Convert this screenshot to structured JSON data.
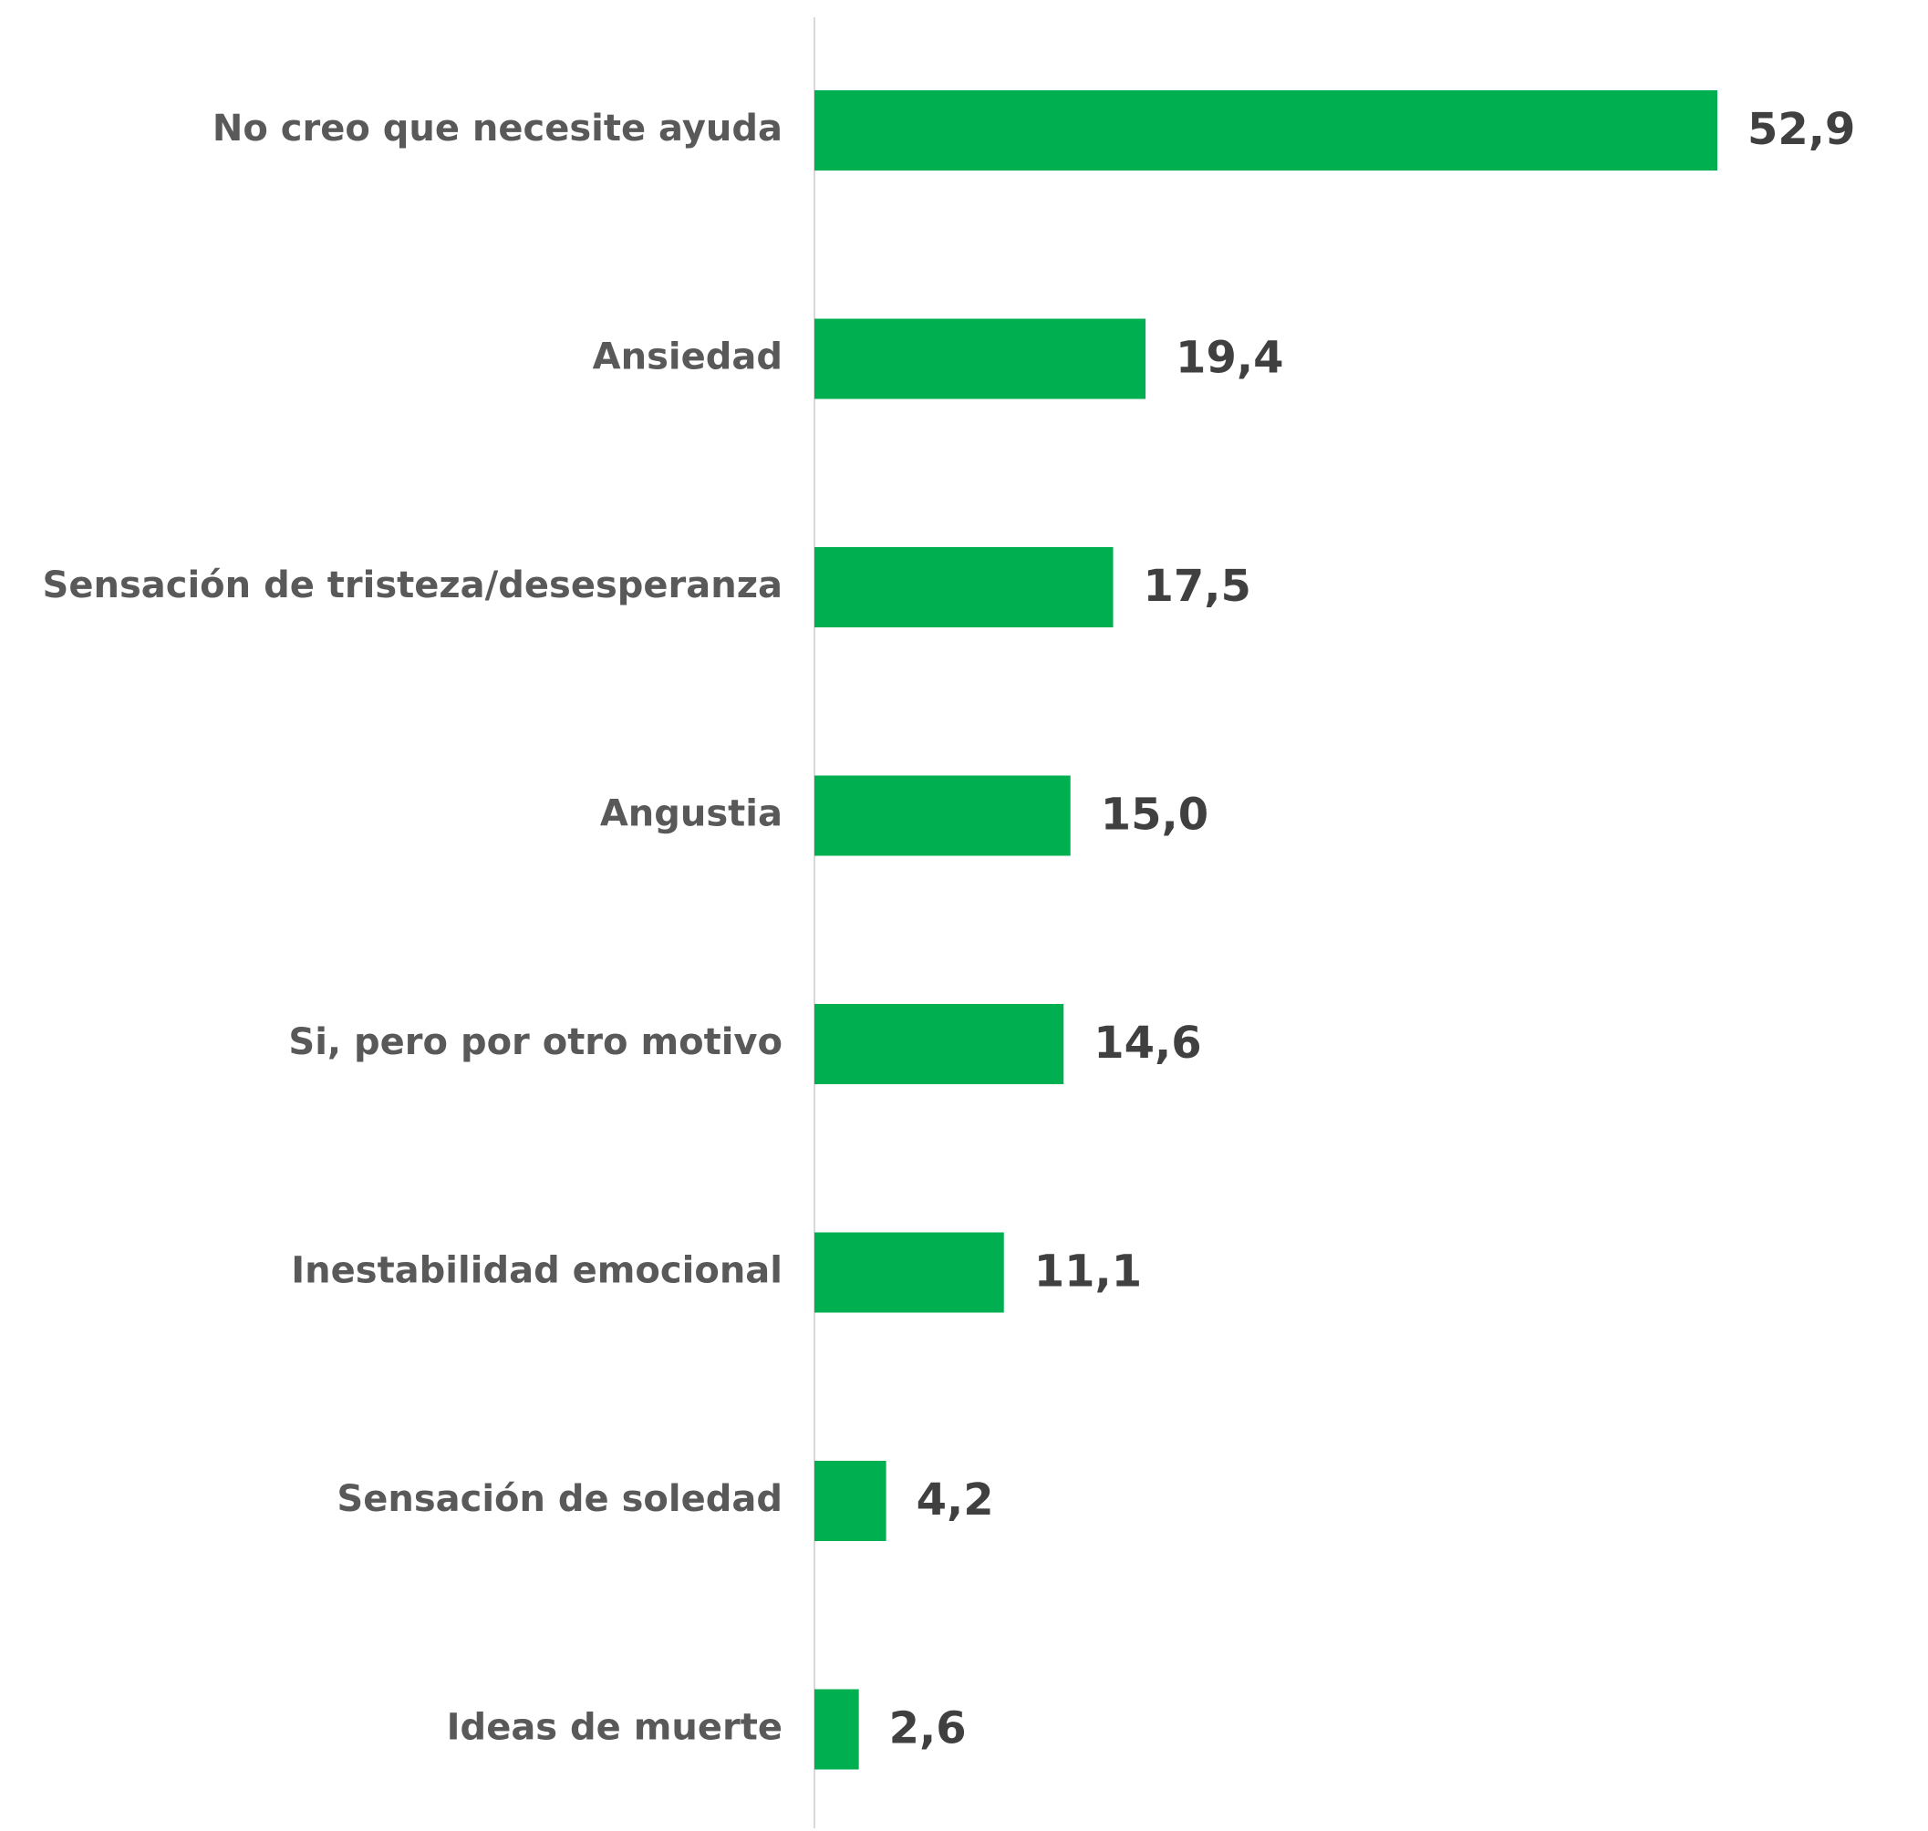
{
  "chart_data": {
    "type": "bar",
    "orientation": "horizontal",
    "categories": [
      "No creo que necesite ayuda",
      "Ansiedad",
      "Sensación de tristeza/desesperanza",
      "Angustia",
      "Si, pero por otro motivo",
      "Inestabilidad  emocional",
      "Sensación de soledad",
      "Ideas de muerte"
    ],
    "values": [
      52.9,
      19.4,
      17.5,
      15.0,
      14.6,
      11.1,
      4.2,
      2.6
    ],
    "value_labels": [
      "52,9",
      "19,4",
      "17,5",
      "15,0",
      "14,6",
      "11,1",
      "4,2",
      "2,6"
    ],
    "color": "#00b050"
  }
}
